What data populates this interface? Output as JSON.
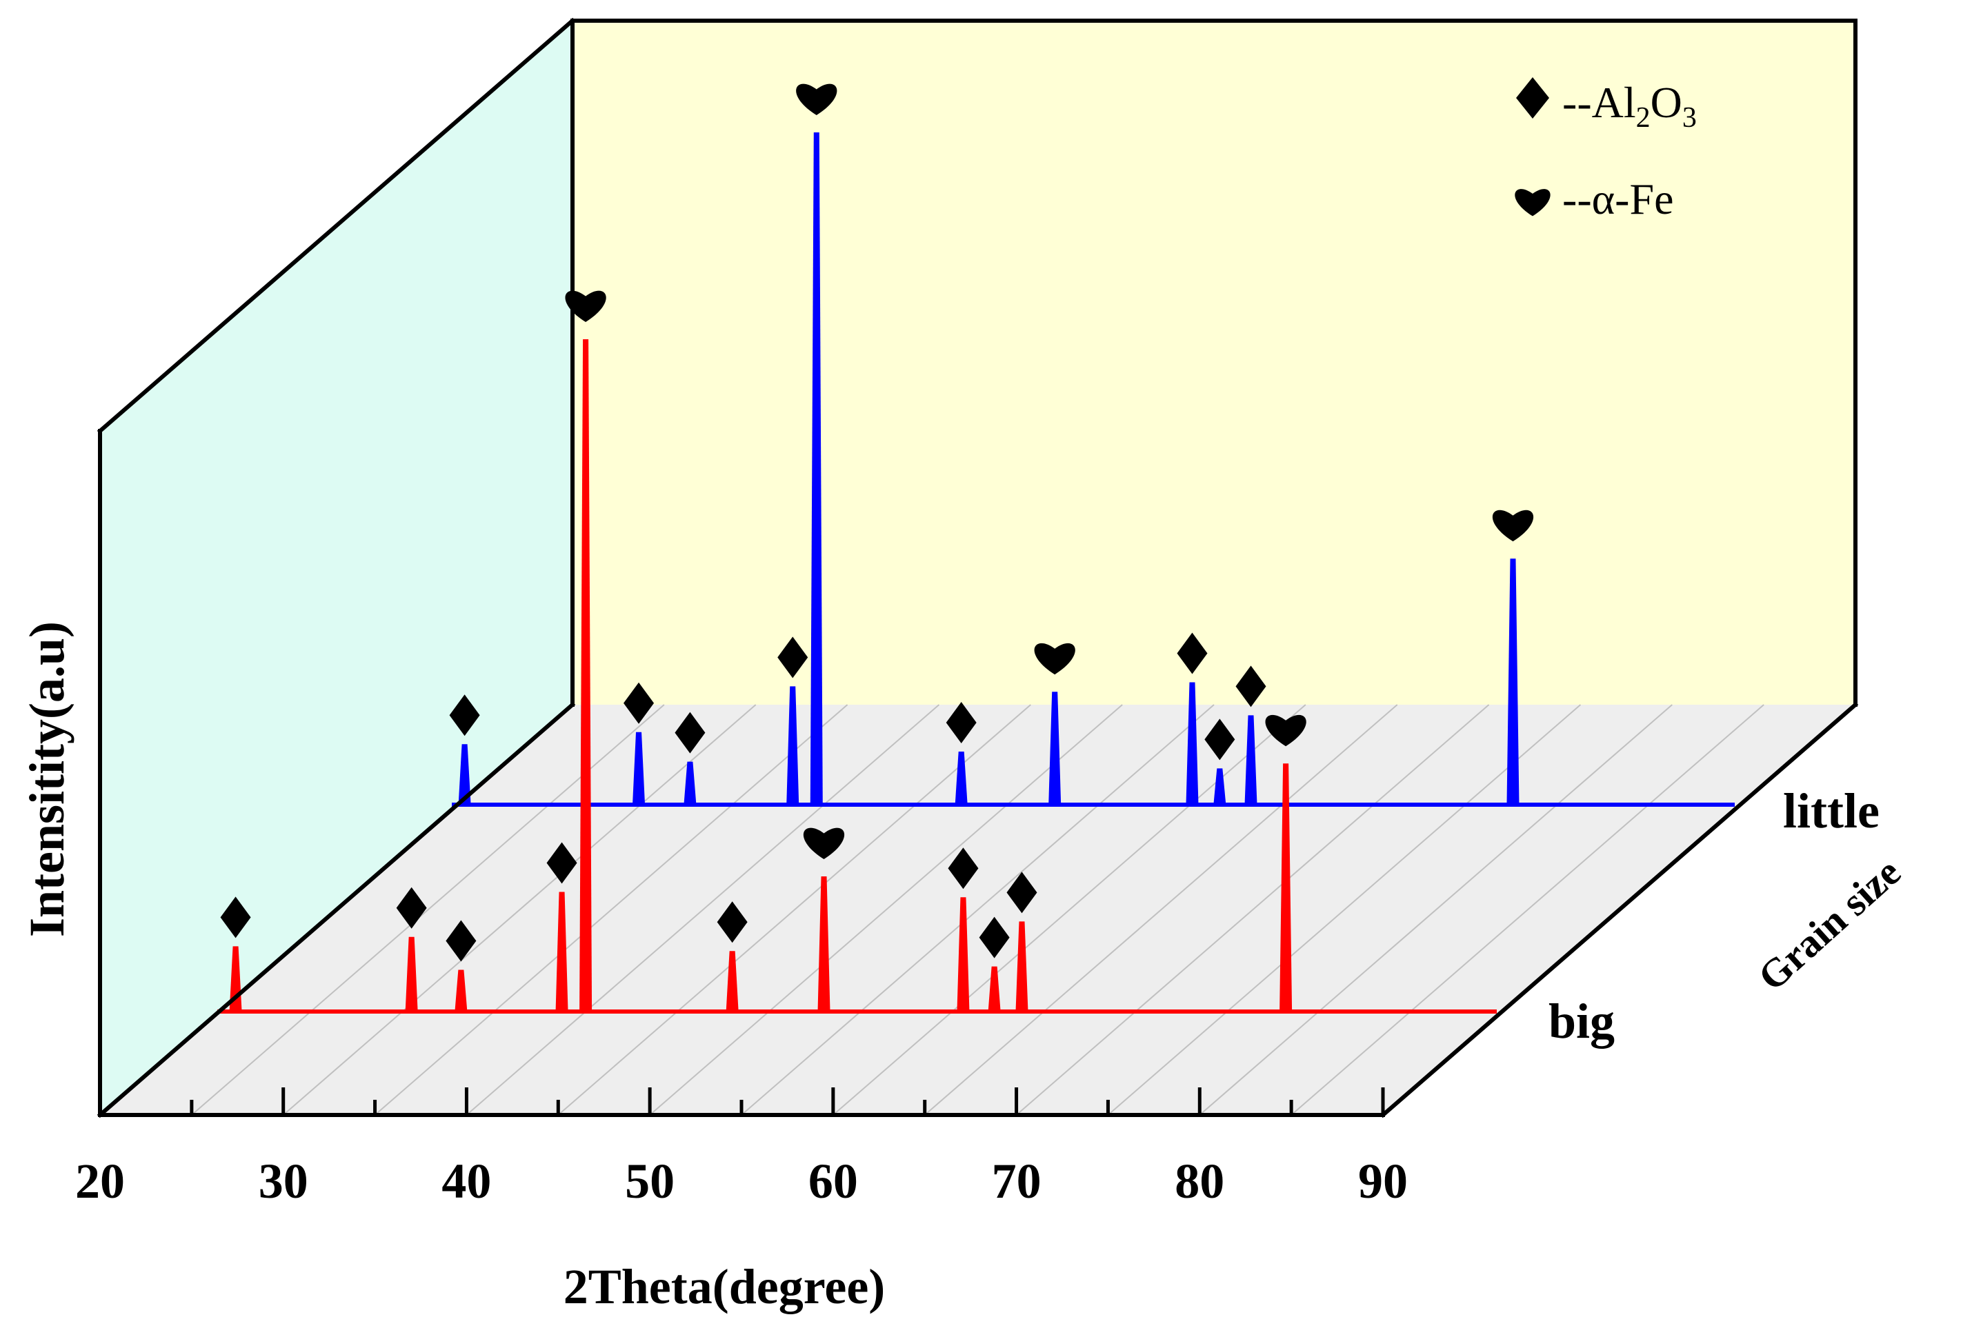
{
  "chart_data": {
    "type": "line",
    "subtype": "3d-waterfall-xrd",
    "xlabel": "2Theta(degree)",
    "ylabel": "Intensitity(a.u)",
    "depth_axis_label": "Grain size",
    "x_ticks": [
      "20",
      "30",
      "40",
      "50",
      "60",
      "70",
      "80",
      "90"
    ],
    "xlim": [
      20,
      90
    ],
    "legend": {
      "placement": "top-right",
      "entries": [
        {
          "symbol": "diamond",
          "prefix": "--Al",
          "sub1": "2",
          "mid": "O",
          "sub2": "3"
        },
        {
          "symbol": "heart",
          "text": "--α-Fe"
        }
      ]
    },
    "series": [
      {
        "name": "little",
        "color": "#0000ff",
        "peaks": [
          {
            "x": 25.2,
            "height": 0.09,
            "marker": "diamond"
          },
          {
            "x": 34.7,
            "height": 0.108,
            "marker": "diamond"
          },
          {
            "x": 37.5,
            "height": 0.064,
            "marker": "diamond"
          },
          {
            "x": 43.1,
            "height": 0.176,
            "marker": "diamond"
          },
          {
            "x": 44.4,
            "height": 1.0,
            "marker": "heart"
          },
          {
            "x": 52.3,
            "height": 0.079,
            "marker": "diamond"
          },
          {
            "x": 57.4,
            "height": 0.168,
            "marker": "heart"
          },
          {
            "x": 64.9,
            "height": 0.182,
            "marker": "diamond"
          },
          {
            "x": 66.4,
            "height": 0.054,
            "marker": "diamond"
          },
          {
            "x": 68.1,
            "height": 0.133,
            "marker": "diamond"
          },
          {
            "x": 82.4,
            "height": 0.366,
            "marker": "heart"
          }
        ]
      },
      {
        "name": "big",
        "color": "#ff0000",
        "peaks": [
          {
            "x": 25.5,
            "height": 0.097,
            "marker": "diamond"
          },
          {
            "x": 35.1,
            "height": 0.111,
            "marker": "diamond"
          },
          {
            "x": 37.8,
            "height": 0.062,
            "marker": "diamond"
          },
          {
            "x": 43.3,
            "height": 0.178,
            "marker": "diamond"
          },
          {
            "x": 44.6,
            "height": 1.0,
            "marker": "heart"
          },
          {
            "x": 52.6,
            "height": 0.09,
            "marker": "diamond"
          },
          {
            "x": 57.6,
            "height": 0.201,
            "marker": "heart"
          },
          {
            "x": 65.2,
            "height": 0.17,
            "marker": "diamond"
          },
          {
            "x": 66.9,
            "height": 0.067,
            "marker": "diamond"
          },
          {
            "x": 68.4,
            "height": 0.134,
            "marker": "diamond"
          },
          {
            "x": 82.8,
            "height": 0.369,
            "marker": "heart"
          }
        ]
      }
    ],
    "colors": {
      "back_wall": "#ffffd6",
      "side_wall": "#ddfbf3",
      "floor": "#eeeeee"
    }
  }
}
